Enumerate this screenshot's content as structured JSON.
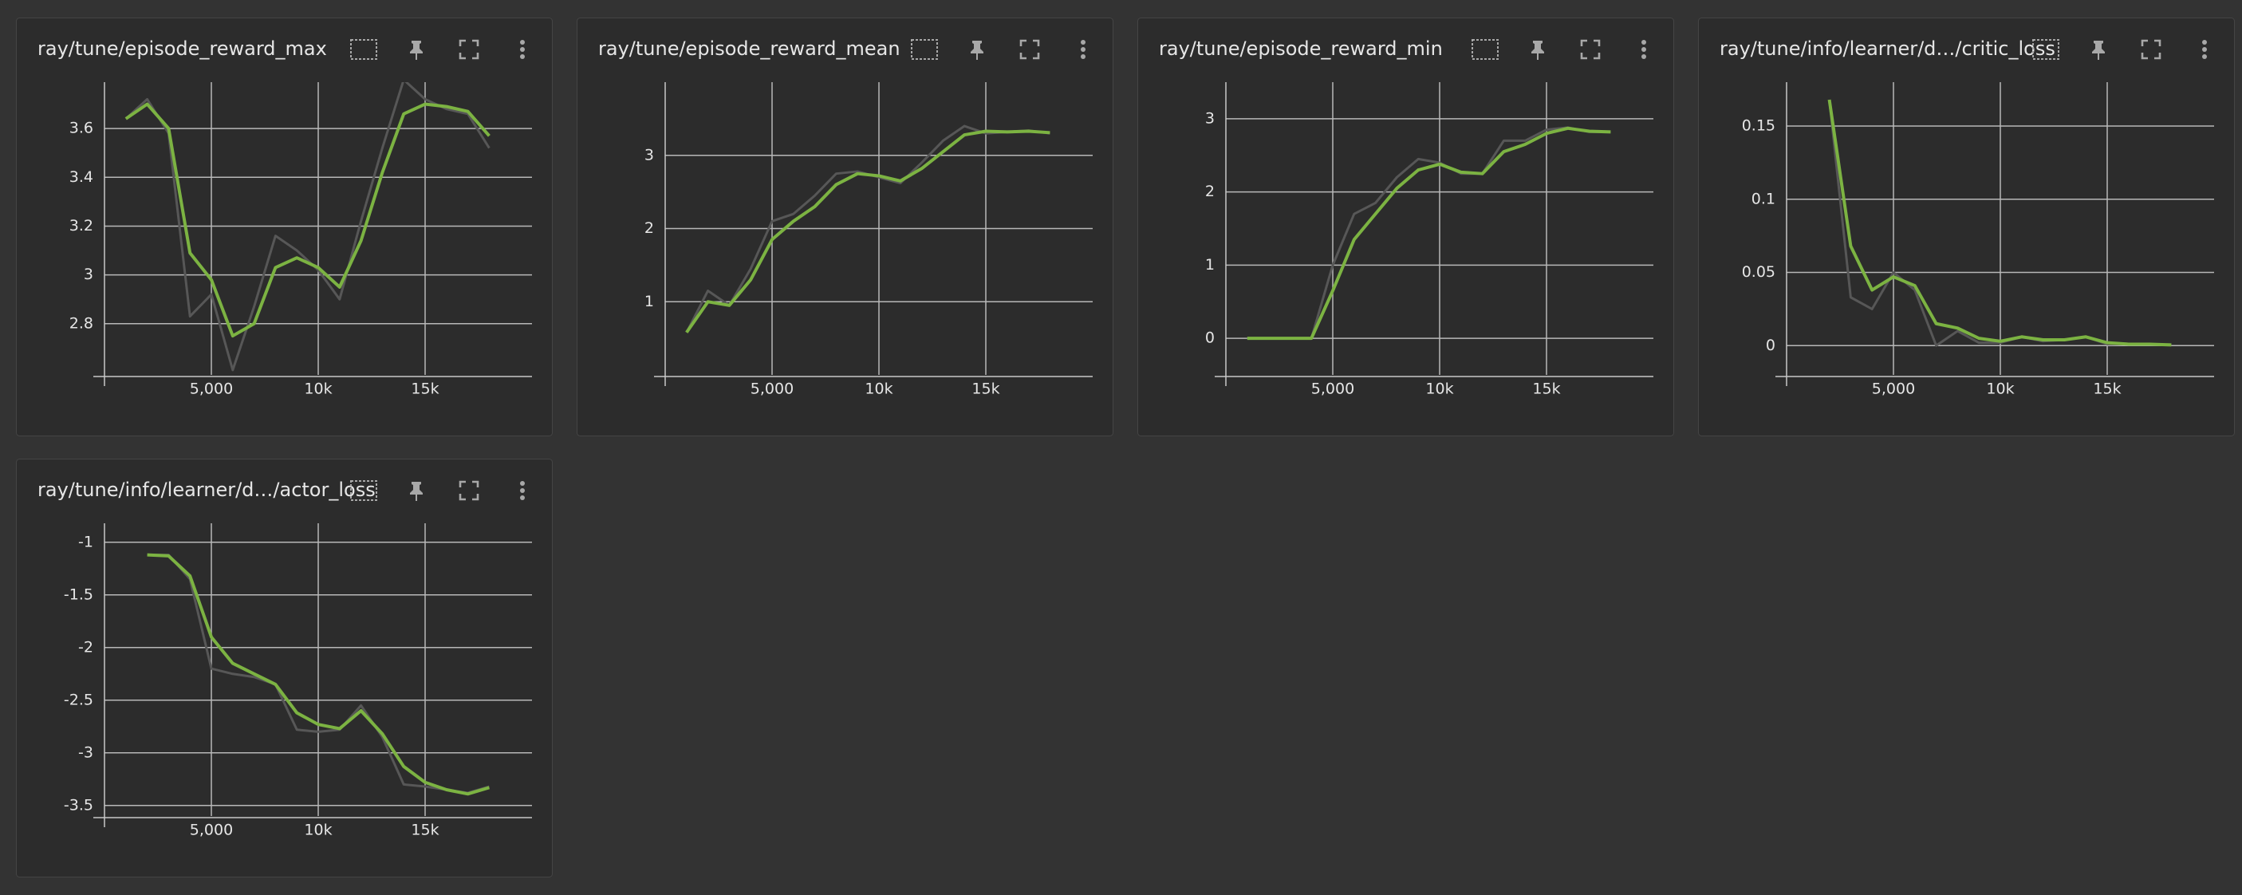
{
  "chart_data": [
    {
      "type": "line",
      "title": "ray/tune/episode_reward_max",
      "x": [
        1000,
        2000,
        3000,
        4000,
        5000,
        6000,
        7000,
        8000,
        9000,
        10000,
        11000,
        12000,
        13000,
        14000,
        15000,
        16000,
        17000,
        18000
      ],
      "series": [
        {
          "color": "#575757",
          "values": [
            3.64,
            3.72,
            3.58,
            2.83,
            2.92,
            2.61,
            2.87,
            3.16,
            3.1,
            3.02,
            2.9,
            3.22,
            3.52,
            3.8,
            3.72,
            3.68,
            3.66,
            3.52
          ]
        },
        {
          "color": "#7cb342",
          "values": [
            3.64,
            3.7,
            3.6,
            3.09,
            2.98,
            2.75,
            2.8,
            3.03,
            3.07,
            3.03,
            2.95,
            3.14,
            3.42,
            3.66,
            3.7,
            3.69,
            3.67,
            3.57
          ]
        }
      ],
      "xlim": [
        0,
        20000
      ],
      "xticks": [
        {
          "value": 5000,
          "label": "5,000"
        },
        {
          "value": 10000,
          "label": "10k"
        },
        {
          "value": 15000,
          "label": "15k"
        }
      ],
      "ylim": [
        2.59,
        3.79
      ],
      "yticks": [
        2.8,
        3,
        3.2,
        3.4,
        3.6
      ],
      "grid": true
    },
    {
      "type": "line",
      "title": "ray/tune/episode_reward_mean",
      "x": [
        1000,
        2000,
        3000,
        4000,
        5000,
        6000,
        7000,
        8000,
        9000,
        10000,
        11000,
        12000,
        13000,
        14000,
        15000,
        16000,
        17000,
        18000
      ],
      "series": [
        {
          "color": "#575757",
          "values": [
            0.58,
            1.15,
            0.95,
            1.45,
            2.1,
            2.2,
            2.45,
            2.75,
            2.78,
            2.7,
            2.62,
            2.9,
            3.2,
            3.4,
            3.3,
            3.32,
            3.34,
            3.3
          ]
        },
        {
          "color": "#7cb342",
          "values": [
            0.58,
            1.0,
            0.95,
            1.3,
            1.85,
            2.1,
            2.3,
            2.6,
            2.75,
            2.72,
            2.65,
            2.82,
            3.05,
            3.28,
            3.33,
            3.32,
            3.33,
            3.31
          ]
        }
      ],
      "xlim": [
        0,
        20000
      ],
      "xticks": [
        {
          "value": 5000,
          "label": "5,000"
        },
        {
          "value": 10000,
          "label": "10k"
        },
        {
          "value": 15000,
          "label": "15k"
        }
      ],
      "ylim": [
        0,
        4
      ],
      "yticks": [
        1,
        2,
        3
      ],
      "grid": true
    },
    {
      "type": "line",
      "title": "ray/tune/episode_reward_min",
      "x": [
        1000,
        2000,
        3000,
        4000,
        5000,
        6000,
        7000,
        8000,
        9000,
        10000,
        11000,
        12000,
        13000,
        14000,
        15000,
        16000,
        17000,
        18000
      ],
      "series": [
        {
          "color": "#575757",
          "values": [
            0,
            0,
            0,
            0,
            1.0,
            1.7,
            1.85,
            2.2,
            2.45,
            2.4,
            2.25,
            2.25,
            2.7,
            2.7,
            2.85,
            2.88,
            2.82,
            2.82
          ]
        },
        {
          "color": "#7cb342",
          "values": [
            0,
            0,
            0,
            0,
            0.65,
            1.35,
            1.7,
            2.05,
            2.3,
            2.38,
            2.27,
            2.25,
            2.55,
            2.65,
            2.8,
            2.87,
            2.83,
            2.82
          ]
        }
      ],
      "xlim": [
        0,
        20000
      ],
      "xticks": [
        {
          "value": 5000,
          "label": "5,000"
        },
        {
          "value": 10000,
          "label": "10k"
        },
        {
          "value": 15000,
          "label": "15k"
        }
      ],
      "ylim": [
        -0.5,
        3.5
      ],
      "yticks": [
        0,
        1,
        2,
        3
      ],
      "grid": true
    },
    {
      "type": "line",
      "title": "ray/tune/info/learner/d…/critic_loss",
      "x": [
        2000,
        3000,
        4000,
        5000,
        6000,
        7000,
        8000,
        9000,
        10000,
        11000,
        12000,
        13000,
        14000,
        15000,
        16000,
        17000,
        18000
      ],
      "series": [
        {
          "color": "#575757",
          "values": [
            0.168,
            0.033,
            0.025,
            0.05,
            0.038,
            0.0,
            0.01,
            0.002,
            0.002,
            0.006,
            0.003,
            0.004,
            0.006,
            0.001,
            0.001,
            0.001,
            0.0005
          ]
        },
        {
          "color": "#7cb342",
          "values": [
            0.168,
            0.068,
            0.038,
            0.047,
            0.041,
            0.015,
            0.012,
            0.005,
            0.003,
            0.006,
            0.004,
            0.004,
            0.006,
            0.002,
            0.001,
            0.001,
            0.0005
          ]
        }
      ],
      "xlim": [
        0,
        20000
      ],
      "xticks": [
        {
          "value": 5000,
          "label": "5,000"
        },
        {
          "value": 10000,
          "label": "10k"
        },
        {
          "value": 15000,
          "label": "15k"
        }
      ],
      "ylim": [
        -0.02,
        0.18
      ],
      "yticks": [
        0,
        0.05,
        0.1,
        0.15
      ],
      "grid": true
    },
    {
      "type": "line",
      "title": "ray/tune/info/learner/d…/actor_loss",
      "x": [
        2000,
        3000,
        4000,
        5000,
        6000,
        7000,
        8000,
        9000,
        10000,
        11000,
        12000,
        13000,
        14000,
        15000,
        16000,
        17000,
        18000
      ],
      "series": [
        {
          "color": "#575757",
          "values": [
            -1.12,
            -1.12,
            -1.35,
            -2.2,
            -2.25,
            -2.28,
            -2.35,
            -2.78,
            -2.8,
            -2.78,
            -2.55,
            -2.85,
            -3.3,
            -3.32,
            -3.35,
            -3.38,
            -3.32
          ]
        },
        {
          "color": "#7cb342",
          "values": [
            -1.12,
            -1.13,
            -1.32,
            -1.9,
            -2.15,
            -2.25,
            -2.35,
            -2.62,
            -2.73,
            -2.77,
            -2.6,
            -2.82,
            -3.13,
            -3.28,
            -3.35,
            -3.39,
            -3.33
          ]
        }
      ],
      "xlim": [
        0,
        20000
      ],
      "xticks": [
        {
          "value": 5000,
          "label": "5,000"
        },
        {
          "value": 10000,
          "label": "10k"
        },
        {
          "value": 15000,
          "label": "15k"
        }
      ],
      "ylim": [
        -3.6,
        -0.82
      ],
      "yticks": [
        -3.5,
        -3,
        -2.5,
        -2,
        -1.5,
        -1
      ],
      "grid": true
    }
  ]
}
